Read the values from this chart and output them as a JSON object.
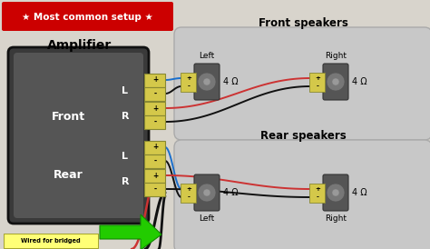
{
  "background_color": "#d8d4cc",
  "title_banner_text": "★ Most common setup ★",
  "title_banner_bg": "#cc0000",
  "title_banner_color": "#ffffff",
  "amp_label": "Amplifier",
  "front_label": "Front",
  "rear_label": "Rear",
  "channel_labels": [
    "L",
    "R",
    "L",
    "R"
  ],
  "front_speakers_title": "Front speakers",
  "rear_speakers_title": "Rear speakers",
  "ohm_label": "4 Ω",
  "arrow_label": "Wired for bridged",
  "blue": "#1a6fcc",
  "red": "#cc3333",
  "black": "#111111",
  "green_arrow": "#22cc00"
}
